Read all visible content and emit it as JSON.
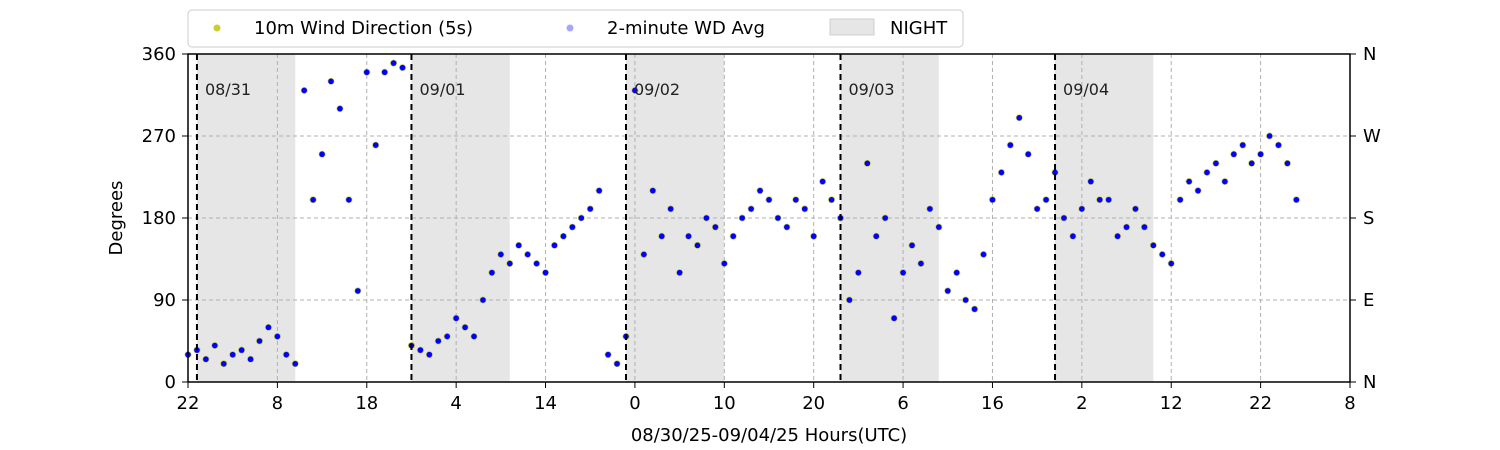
{
  "chart_data": {
    "type": "scatter",
    "title": "",
    "xlabel": "08/30/25-09/04/25  Hours(UTC)",
    "ylabel": "Degrees",
    "x_axis_range_hours": [
      0,
      130
    ],
    "xticks": [
      {
        "pos_hours": 0,
        "label": "22"
      },
      {
        "pos_hours": 10,
        "label": "8"
      },
      {
        "pos_hours": 20,
        "label": "18"
      },
      {
        "pos_hours": 30,
        "label": "4"
      },
      {
        "pos_hours": 40,
        "label": "14"
      },
      {
        "pos_hours": 50,
        "label": "0"
      },
      {
        "pos_hours": 60,
        "label": "10"
      },
      {
        "pos_hours": 70,
        "label": "20"
      },
      {
        "pos_hours": 80,
        "label": "6"
      },
      {
        "pos_hours": 90,
        "label": "16"
      },
      {
        "pos_hours": 100,
        "label": "2"
      },
      {
        "pos_hours": 110,
        "label": "12"
      },
      {
        "pos_hours": 120,
        "label": "22"
      },
      {
        "pos_hours": 130,
        "label": "8"
      }
    ],
    "ylim": [
      0,
      360
    ],
    "yticks": [
      0,
      90,
      180,
      270,
      360
    ],
    "yticks_right": [
      {
        "value": 0,
        "label": "N"
      },
      {
        "value": 90,
        "label": "E"
      },
      {
        "value": 180,
        "label": "S"
      },
      {
        "value": 270,
        "label": "W"
      },
      {
        "value": 360,
        "label": "N"
      }
    ],
    "grid": true,
    "legend": {
      "placement": "top-left",
      "entries": [
        {
          "name": "10m Wind Direction (5s)",
          "color": "#bfbf00",
          "marker": "dot"
        },
        {
          "name": "2-minute WD Avg",
          "color": "#0000ff",
          "marker": "dot"
        },
        {
          "name": "NIGHT",
          "color": "#e6e6e6",
          "marker": "patch"
        }
      ]
    },
    "night_periods_hours": [
      [
        1,
        12
      ],
      [
        25,
        36
      ],
      [
        49,
        60
      ],
      [
        73,
        84
      ],
      [
        97,
        108
      ]
    ],
    "midnights": [
      {
        "hour": 1,
        "label": "08/31"
      },
      {
        "hour": 25,
        "label": "09/01"
      },
      {
        "hour": 49,
        "label": "09/02"
      },
      {
        "hour": 73,
        "label": "09/03"
      },
      {
        "hour": 97,
        "label": "09/04"
      }
    ],
    "series": [
      {
        "name": "10m Wind Direction (5s)",
        "color": "#bfbf00",
        "x": [
          0,
          1,
          2,
          3,
          4,
          5,
          6,
          7,
          8,
          9,
          10,
          11,
          12,
          13,
          14,
          15,
          16,
          17,
          18,
          19,
          20,
          21,
          22,
          23,
          24,
          25,
          26,
          27,
          28,
          29,
          30,
          31,
          32,
          33,
          34,
          35,
          36,
          37,
          38,
          39,
          40,
          41,
          42,
          43,
          44,
          45,
          46,
          47,
          48,
          49,
          50,
          51,
          52,
          53,
          54,
          55,
          56,
          57,
          58,
          59,
          60,
          61,
          62,
          63,
          64,
          65,
          66,
          67,
          68,
          69,
          70,
          71,
          72,
          73,
          74,
          75,
          76,
          77,
          78,
          79,
          80,
          81,
          82,
          83,
          84,
          85,
          86,
          87,
          88,
          89,
          90,
          91,
          92,
          93,
          94,
          95,
          96,
          97,
          98,
          99,
          100,
          101,
          102,
          103,
          104,
          105,
          106,
          107,
          108,
          109,
          110,
          111,
          112,
          113,
          114,
          115,
          116,
          117,
          118,
          119,
          120,
          121,
          122,
          123,
          124
        ],
        "y": [
          30,
          35,
          25,
          40,
          20,
          30,
          35,
          25,
          45,
          60,
          50,
          30,
          20,
          320,
          200,
          250,
          330,
          300,
          200,
          100,
          340,
          260,
          340,
          350,
          345,
          40,
          35,
          30,
          45,
          50,
          70,
          60,
          50,
          90,
          120,
          140,
          130,
          150,
          140,
          130,
          120,
          150,
          160,
          170,
          180,
          190,
          210,
          30,
          20,
          50,
          320,
          140,
          210,
          160,
          190,
          120,
          160,
          150,
          180,
          170,
          130,
          160,
          180,
          190,
          210,
          200,
          180,
          170,
          200,
          190,
          160,
          220,
          200,
          180,
          90,
          120,
          240,
          160,
          180,
          70,
          120,
          150,
          130,
          190,
          170,
          100,
          120,
          90,
          80,
          140,
          200,
          230,
          260,
          290,
          250,
          190,
          200,
          230,
          180,
          160,
          190,
          220,
          200,
          200,
          160,
          170,
          190,
          170,
          150,
          140,
          130,
          200,
          220,
          210,
          230,
          240,
          220,
          250,
          260,
          240,
          250,
          270,
          260,
          240,
          200
        ]
      },
      {
        "name": "2-minute WD Avg",
        "color": "#0000ff",
        "x": [
          0,
          1,
          2,
          3,
          4,
          5,
          6,
          7,
          8,
          9,
          10,
          11,
          12,
          13,
          14,
          15,
          16,
          17,
          18,
          19,
          20,
          21,
          22,
          23,
          24,
          25,
          26,
          27,
          28,
          29,
          30,
          31,
          32,
          33,
          34,
          35,
          36,
          37,
          38,
          39,
          40,
          41,
          42,
          43,
          44,
          45,
          46,
          47,
          48,
          49,
          50,
          51,
          52,
          53,
          54,
          55,
          56,
          57,
          58,
          59,
          60,
          61,
          62,
          63,
          64,
          65,
          66,
          67,
          68,
          69,
          70,
          71,
          72,
          73,
          74,
          75,
          76,
          77,
          78,
          79,
          80,
          81,
          82,
          83,
          84,
          85,
          86,
          87,
          88,
          89,
          90,
          91,
          92,
          93,
          94,
          95,
          96,
          97,
          98,
          99,
          100,
          101,
          102,
          103,
          104,
          105,
          106,
          107,
          108,
          109,
          110,
          111,
          112,
          113,
          114,
          115,
          116,
          117,
          118,
          119,
          120,
          121,
          122,
          123,
          124
        ],
        "y": [
          30,
          35,
          25,
          40,
          20,
          30,
          35,
          25,
          45,
          60,
          50,
          30,
          20,
          320,
          200,
          250,
          330,
          300,
          200,
          100,
          340,
          260,
          340,
          350,
          345,
          40,
          35,
          30,
          45,
          50,
          70,
          60,
          50,
          90,
          120,
          140,
          130,
          150,
          140,
          130,
          120,
          150,
          160,
          170,
          180,
          190,
          210,
          30,
          20,
          50,
          320,
          140,
          210,
          160,
          190,
          120,
          160,
          150,
          180,
          170,
          130,
          160,
          180,
          190,
          210,
          200,
          180,
          170,
          200,
          190,
          160,
          220,
          200,
          180,
          90,
          120,
          240,
          160,
          180,
          70,
          120,
          150,
          130,
          190,
          170,
          100,
          120,
          90,
          80,
          140,
          200,
          230,
          260,
          290,
          250,
          190,
          200,
          230,
          180,
          160,
          190,
          220,
          200,
          200,
          160,
          170,
          190,
          170,
          150,
          140,
          130,
          200,
          220,
          210,
          230,
          240,
          220,
          250,
          260,
          240,
          250,
          270,
          260,
          240,
          200
        ]
      }
    ]
  }
}
